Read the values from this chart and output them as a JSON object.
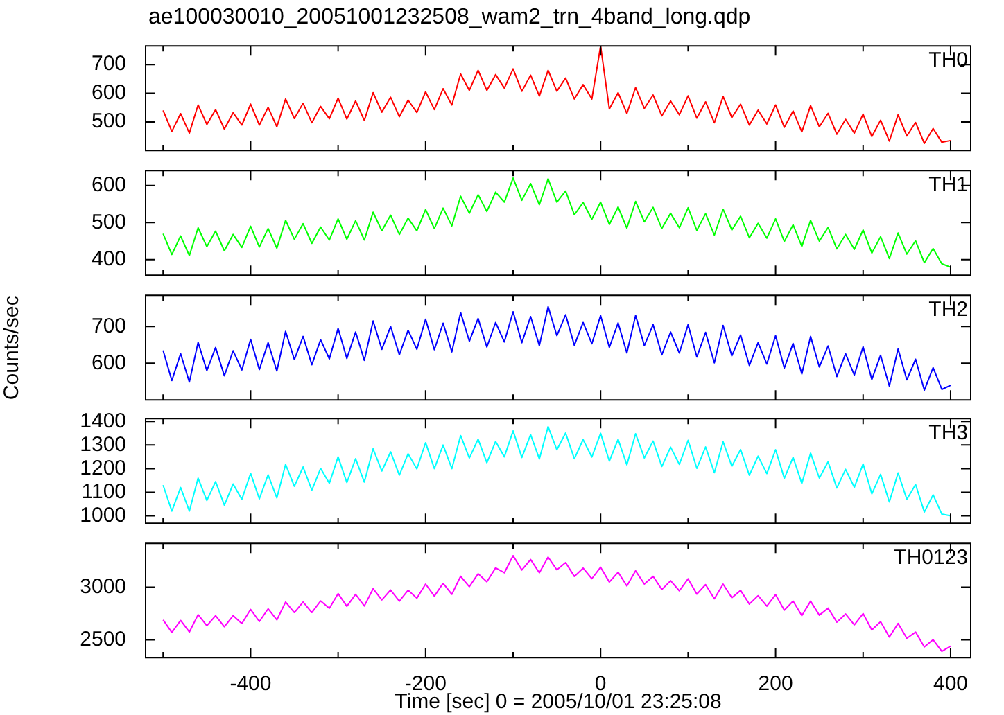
{
  "chart_data": [
    {
      "type": "line",
      "title": "ae100030010_20051001232508_wam2_trn_4band_long.qdp",
      "tick_labels": "y",
      "xlim": [
        -520,
        423
      ],
      "xticks": [
        {
          "value": -500,
          "label": null
        },
        -400,
        {
          "value": -300,
          "label": null
        },
        -200,
        {
          "value": -100,
          "label": null
        },
        0,
        {
          "value": 100,
          "label": null
        },
        200,
        {
          "value": 300,
          "label": null
        },
        400
      ],
      "ylim": [
        400,
        765
      ],
      "yticks": [
        500,
        600,
        700
      ],
      "x": [
        -500,
        -490,
        -480,
        -470,
        -460,
        -450,
        -440,
        -430,
        -420,
        -410,
        -400,
        -390,
        -380,
        -370,
        -360,
        -350,
        -340,
        -330,
        -320,
        -310,
        -300,
        -290,
        -280,
        -270,
        -260,
        -250,
        -240,
        -230,
        -220,
        -210,
        -200,
        -190,
        -180,
        -170,
        -160,
        -150,
        -140,
        -130,
        -120,
        -110,
        -100,
        -90,
        -80,
        -70,
        -60,
        -50,
        -40,
        -30,
        -20,
        -10,
        0,
        10,
        20,
        30,
        40,
        50,
        60,
        70,
        80,
        90,
        100,
        110,
        120,
        130,
        140,
        150,
        160,
        170,
        180,
        190,
        200,
        210,
        220,
        230,
        240,
        250,
        260,
        270,
        280,
        290,
        300,
        310,
        320,
        330,
        340,
        350,
        360,
        370,
        380,
        390,
        400
      ],
      "series": [
        {
          "name": "TH0",
          "color": "#ff0000",
          "values": [
            540,
            467,
            529,
            461,
            559,
            491,
            543,
            475,
            532,
            489,
            562,
            489,
            551,
            483,
            580,
            512,
            565,
            497,
            554,
            511,
            583,
            510,
            573,
            505,
            602,
            534,
            586,
            518,
            576,
            533,
            605,
            543,
            616,
            559,
            667,
            610,
            680,
            610,
            665,
            618,
            685,
            607,
            663,
            590,
            680,
            607,
            653,
            580,
            630,
            580,
            765,
            545,
            602,
            529,
            620,
            547,
            594,
            521,
            573,
            525,
            591,
            513,
            570,
            497,
            589,
            515,
            562,
            489,
            541,
            493,
            559,
            481,
            538,
            465,
            557,
            483,
            530,
            457,
            509,
            461,
            527,
            449,
            506,
            433,
            525,
            451,
            498,
            425,
            477,
            429,
            435
          ]
        }
      ]
    },
    {
      "type": "line",
      "tick_labels": "y",
      "xlim": [
        -520,
        423
      ],
      "xticks": [
        {
          "value": -500,
          "label": null
        },
        -400,
        {
          "value": -300,
          "label": null
        },
        -200,
        {
          "value": -100,
          "label": null
        },
        0,
        {
          "value": 100,
          "label": null
        },
        200,
        {
          "value": 300,
          "label": null
        },
        400
      ],
      "ylim": [
        358,
        640
      ],
      "yticks": [
        400,
        500,
        600
      ],
      "x": [
        -500,
        -490,
        -480,
        -470,
        -460,
        -450,
        -440,
        -430,
        -420,
        -410,
        -400,
        -390,
        -380,
        -370,
        -360,
        -350,
        -340,
        -330,
        -320,
        -310,
        -300,
        -290,
        -280,
        -270,
        -260,
        -250,
        -240,
        -230,
        -220,
        -210,
        -200,
        -190,
        -180,
        -170,
        -160,
        -150,
        -140,
        -130,
        -120,
        -110,
        -100,
        -90,
        -80,
        -70,
        -60,
        -50,
        -40,
        -30,
        -20,
        -10,
        0,
        10,
        20,
        30,
        40,
        50,
        60,
        70,
        80,
        90,
        100,
        110,
        120,
        130,
        140,
        150,
        160,
        170,
        180,
        190,
        200,
        210,
        220,
        230,
        240,
        250,
        260,
        270,
        280,
        290,
        300,
        310,
        320,
        330,
        340,
        350,
        360,
        370,
        380,
        390,
        400
      ],
      "series": [
        {
          "name": "TH1",
          "color": "#00ff00",
          "values": [
            470,
            414,
            464,
            411,
            486,
            435,
            477,
            424,
            468,
            433,
            490,
            434,
            484,
            431,
            506,
            455,
            497,
            444,
            488,
            453,
            510,
            455,
            505,
            453,
            528,
            478,
            520,
            468,
            512,
            478,
            535,
            484,
            539,
            491,
            571,
            525,
            575,
            530,
            582,
            555,
            620,
            560,
            605,
            548,
            618,
            555,
            585,
            521,
            554,
            509,
            555,
            495,
            542,
            485,
            557,
            502,
            541,
            484,
            525,
            486,
            540,
            479,
            524,
            466,
            536,
            480,
            517,
            459,
            498,
            458,
            510,
            449,
            494,
            436,
            506,
            450,
            487,
            429,
            468,
            428,
            480,
            418,
            462,
            403,
            472,
            415,
            451,
            392,
            430,
            389,
            380
          ]
        }
      ]
    },
    {
      "type": "line",
      "tick_labels": "y",
      "ylabel": "Counts/sec",
      "xlim": [
        -520,
        423
      ],
      "xticks": [
        {
          "value": -500,
          "label": null
        },
        -400,
        {
          "value": -300,
          "label": null
        },
        -200,
        {
          "value": -100,
          "label": null
        },
        0,
        {
          "value": 100,
          "label": null
        },
        200,
        {
          "value": 300,
          "label": null
        },
        400
      ],
      "ylim": [
        500,
        785
      ],
      "yticks": [
        600,
        700
      ],
      "x": [
        -500,
        -490,
        -480,
        -470,
        -460,
        -450,
        -440,
        -430,
        -420,
        -410,
        -400,
        -390,
        -380,
        -370,
        -360,
        -350,
        -340,
        -330,
        -320,
        -310,
        -300,
        -290,
        -280,
        -270,
        -260,
        -250,
        -240,
        -230,
        -220,
        -210,
        -200,
        -190,
        -180,
        -170,
        -160,
        -150,
        -140,
        -130,
        -120,
        -110,
        -100,
        -90,
        -80,
        -70,
        -60,
        -50,
        -40,
        -30,
        -20,
        -10,
        0,
        10,
        20,
        30,
        40,
        50,
        60,
        70,
        80,
        90,
        100,
        110,
        120,
        130,
        140,
        150,
        160,
        170,
        180,
        190,
        200,
        210,
        220,
        230,
        240,
        250,
        260,
        270,
        280,
        290,
        300,
        310,
        320,
        330,
        340,
        350,
        360,
        370,
        380,
        390,
        400
      ],
      "series": [
        {
          "name": "TH2",
          "color": "#0000ff",
          "values": [
            635,
            553,
            626,
            549,
            657,
            580,
            643,
            566,
            634,
            582,
            665,
            583,
            656,
            579,
            687,
            610,
            673,
            596,
            664,
            612,
            695,
            613,
            685,
            608,
            715,
            638,
            700,
            623,
            690,
            638,
            720,
            637,
            709,
            631,
            738,
            660,
            722,
            644,
            711,
            658,
            740,
            656,
            727,
            648,
            754,
            675,
            732,
            649,
            711,
            653,
            730,
            643,
            710,
            628,
            730,
            648,
            705,
            623,
            685,
            628,
            705,
            617,
            684,
            601,
            703,
            620,
            677,
            594,
            656,
            598,
            675,
            587,
            654,
            571,
            673,
            590,
            647,
            564,
            626,
            568,
            645,
            556,
            622,
            538,
            639,
            555,
            611,
            527,
            588,
            529,
            540
          ]
        }
      ]
    },
    {
      "type": "line",
      "tick_labels": "y",
      "xlim": [
        -520,
        423
      ],
      "xticks": [
        {
          "value": -500,
          "label": null
        },
        -400,
        {
          "value": -300,
          "label": null
        },
        -200,
        {
          "value": -100,
          "label": null
        },
        0,
        {
          "value": 100,
          "label": null
        },
        200,
        {
          "value": 300,
          "label": null
        },
        400
      ],
      "ylim": [
        968,
        1412
      ],
      "yticks": [
        1000,
        1100,
        1200,
        1300,
        1400
      ],
      "x": [
        -500,
        -490,
        -480,
        -470,
        -460,
        -450,
        -440,
        -430,
        -420,
        -410,
        -400,
        -390,
        -380,
        -370,
        -360,
        -350,
        -340,
        -330,
        -320,
        -310,
        -300,
        -290,
        -280,
        -270,
        -260,
        -250,
        -240,
        -230,
        -220,
        -210,
        -200,
        -190,
        -180,
        -170,
        -160,
        -150,
        -140,
        -130,
        -120,
        -110,
        -100,
        -90,
        -80,
        -70,
        -60,
        -50,
        -40,
        -30,
        -20,
        -10,
        0,
        10,
        20,
        30,
        40,
        50,
        60,
        70,
        80,
        90,
        100,
        110,
        120,
        130,
        140,
        150,
        160,
        170,
        180,
        190,
        200,
        210,
        220,
        230,
        240,
        250,
        260,
        270,
        280,
        290,
        300,
        310,
        320,
        330,
        340,
        350,
        360,
        370,
        380,
        390,
        400
      ],
      "series": [
        {
          "name": "TH3",
          "color": "#00ffff",
          "values": [
            1130,
            1020,
            1120,
            1020,
            1160,
            1065,
            1145,
            1045,
            1135,
            1070,
            1180,
            1072,
            1174,
            1076,
            1218,
            1125,
            1207,
            1109,
            1201,
            1138,
            1250,
            1141,
            1242,
            1143,
            1284,
            1190,
            1271,
            1172,
            1263,
            1199,
            1310,
            1200,
            1300,
            1200,
            1340,
            1245,
            1325,
            1225,
            1315,
            1250,
            1360,
            1247,
            1344,
            1241,
            1378,
            1280,
            1351,
            1242,
            1323,
            1249,
            1350,
            1232,
            1324,
            1216,
            1348,
            1245,
            1317,
            1209,
            1291,
            1218,
            1320,
            1201,
            1292,
            1183,
            1314,
            1210,
            1281,
            1172,
            1253,
            1179,
            1280,
            1159,
            1248,
            1137,
            1266,
            1160,
            1229,
            1118,
            1197,
            1121,
            1220,
            1093,
            1176,
            1059,
            1182,
            1070,
            1133,
            1016,
            1089,
            1007,
            1000
          ]
        }
      ]
    },
    {
      "type": "line",
      "xlabel": "Time [sec] 0 = 2005/10/01 23:25:08",
      "xlim": [
        -520,
        423
      ],
      "xticks": [
        {
          "value": -500,
          "label": null
        },
        -400,
        {
          "value": -300,
          "label": null
        },
        -200,
        {
          "value": -100,
          "label": null
        },
        0,
        {
          "value": 100,
          "label": null
        },
        200,
        {
          "value": 300,
          "label": null
        },
        400
      ],
      "ylim": [
        2332,
        3417
      ],
      "yticks": [
        2500,
        3000
      ],
      "x": [
        -500,
        -490,
        -480,
        -470,
        -460,
        -450,
        -440,
        -430,
        -420,
        -410,
        -400,
        -390,
        -380,
        -370,
        -360,
        -350,
        -340,
        -330,
        -320,
        -310,
        -300,
        -290,
        -280,
        -270,
        -260,
        -250,
        -240,
        -230,
        -220,
        -210,
        -200,
        -190,
        -180,
        -170,
        -160,
        -150,
        -140,
        -130,
        -120,
        -110,
        -100,
        -90,
        -80,
        -70,
        -60,
        -50,
        -40,
        -30,
        -20,
        -10,
        0,
        10,
        20,
        30,
        40,
        50,
        60,
        70,
        80,
        90,
        100,
        110,
        120,
        130,
        140,
        150,
        160,
        170,
        180,
        190,
        200,
        210,
        220,
        230,
        240,
        250,
        260,
        270,
        280,
        290,
        300,
        310,
        320,
        330,
        340,
        350,
        360,
        370,
        380,
        390,
        400
      ],
      "series": [
        {
          "name": "TH0123",
          "color": "#ff00ff",
          "values": [
            2690,
            2570,
            2685,
            2575,
            2740,
            2635,
            2730,
            2625,
            2730,
            2655,
            2790,
            2675,
            2795,
            2690,
            2860,
            2760,
            2860,
            2760,
            2870,
            2800,
            2940,
            2819,
            2933,
            2822,
            2986,
            2880,
            2974,
            2868,
            2972,
            2896,
            3030,
            2916,
            3037,
            2933,
            3104,
            3005,
            3128,
            3051,
            3184,
            3137,
            3300,
            3164,
            3263,
            3137,
            3286,
            3165,
            3234,
            3103,
            3182,
            3081,
            3190,
            3049,
            3143,
            3012,
            3156,
            3030,
            3104,
            2978,
            3062,
            2966,
            3080,
            2935,
            3025,
            2890,
            3030,
            2900,
            2970,
            2840,
            2920,
            2820,
            2930,
            2782,
            2869,
            2731,
            2868,
            2735,
            2802,
            2669,
            2746,
            2643,
            2750,
            2594,
            2673,
            2527,
            2656,
            2515,
            2574,
            2433,
            2502,
            2391,
            2440
          ]
        }
      ]
    }
  ]
}
